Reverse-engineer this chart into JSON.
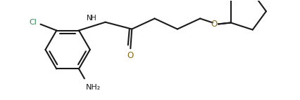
{
  "bg_color": "#ffffff",
  "line_color": "#1a1a1a",
  "label_color_Cl": "#2e8b57",
  "label_color_O": "#8b6914",
  "label_color_NH": "#1a1a1a",
  "label_color_NH2": "#1a1a1a",
  "figsize": [
    4.26,
    1.43
  ],
  "dpi": 100,
  "xlim": [
    0.0,
    4.26
  ],
  "ylim": [
    0.0,
    1.43
  ]
}
